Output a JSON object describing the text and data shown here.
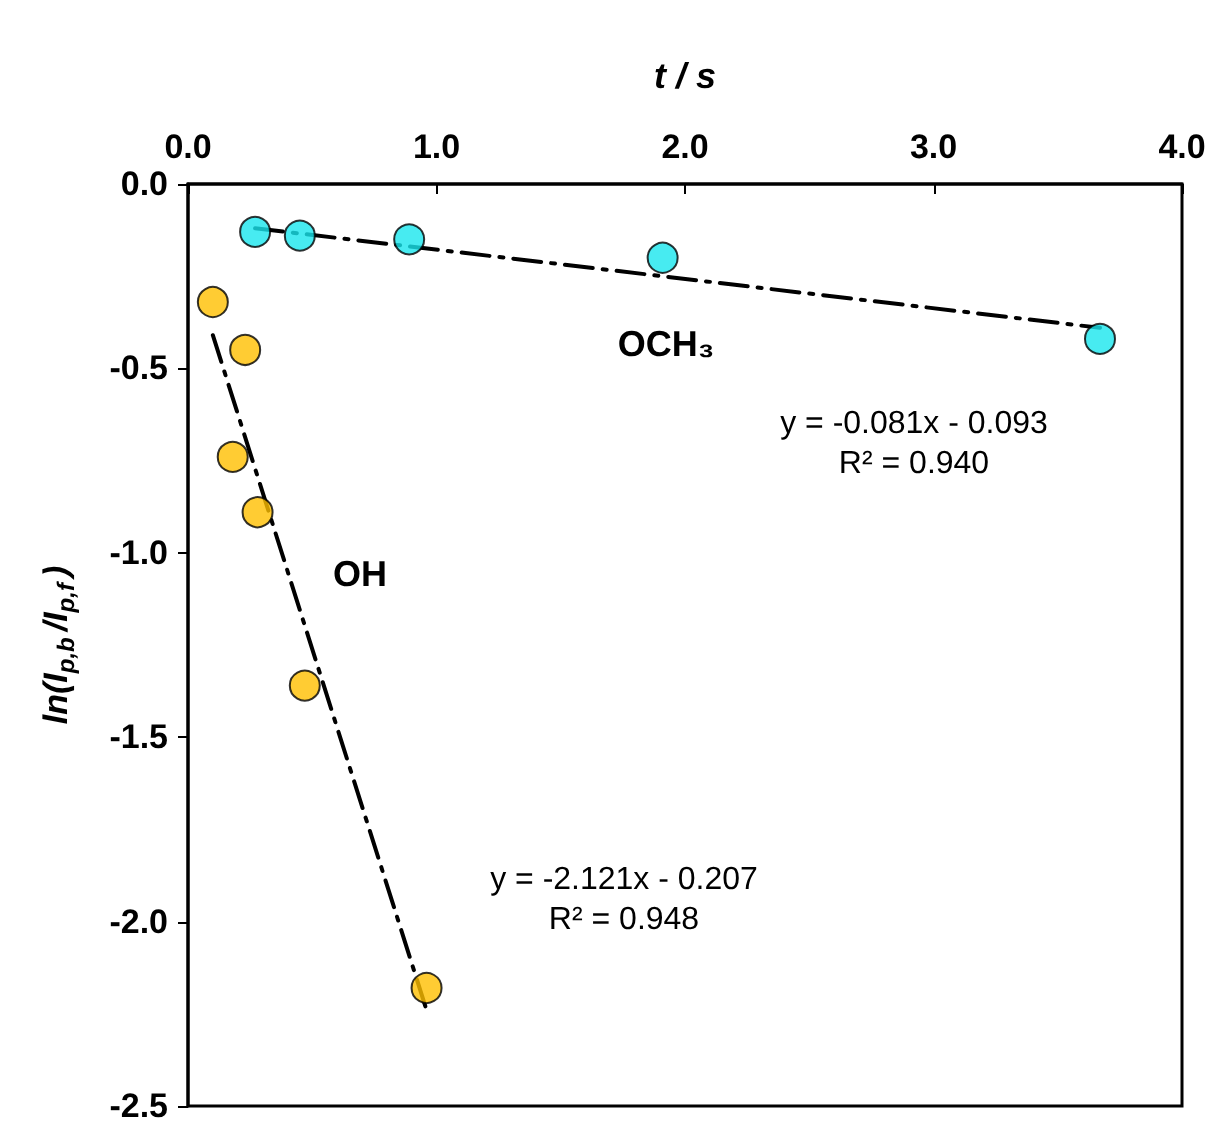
{
  "chart_data": {
    "type": "scatter",
    "xlabel": "t / s",
    "ylabel": "ln(I$_{p,b}$/I$_{p,f}$)",
    "xlim": [
      0,
      4
    ],
    "xticks": [
      {
        "value": 0,
        "label": "0.0"
      },
      {
        "value": 1,
        "label": "1.0"
      },
      {
        "value": 2,
        "label": "2.0"
      },
      {
        "value": 3,
        "label": "3.0"
      },
      {
        "value": 4,
        "label": "4.0"
      }
    ],
    "ylim": [
      -2.5,
      0
    ],
    "yticks": [
      {
        "value": -2.5,
        "label": "-2.5"
      },
      {
        "value": -2,
        "label": "-2.0"
      },
      {
        "value": -1.5,
        "label": "-1.5"
      },
      {
        "value": -1,
        "label": "-1.0"
      },
      {
        "value": -0.5,
        "label": "-0.5"
      },
      {
        "value": 0,
        "label": "0.0"
      }
    ],
    "grid": false,
    "marker": "circle",
    "series": [
      {
        "name": "OH",
        "color": "#ffbf00",
        "x": [
          0.1,
          0.23,
          0.18,
          0.28,
          0.47,
          0.96
        ],
        "values": [
          -0.32,
          -0.45,
          -0.74,
          -0.89,
          -1.36,
          -2.18
        ]
      },
      {
        "name": "OCH₃",
        "color": "#19e6ee",
        "x": [
          0.27,
          0.45,
          0.89,
          1.91,
          3.67
        ],
        "values": [
          -0.13,
          -0.14,
          -0.15,
          -0.2,
          -0.42
        ]
      },
      {
        "type": "line",
        "color": "#000000",
        "marker": "none",
        "line_style": "dashed",
        "x": [
          0.1,
          0.96
        ],
        "values": [
          -0.41,
          -2.24
        ]
      },
      {
        "type": "line",
        "color": "#000000",
        "marker": "none",
        "line_style": "dashed",
        "x": [
          0.27,
          3.67
        ],
        "values": [
          -0.12,
          -0.39
        ]
      }
    ],
    "annotations": [
      "y = -0.081x - 0.093\nR² = 0.940",
      "y = -2.121x - 0.207\nR² = 0.948"
    ]
  }
}
